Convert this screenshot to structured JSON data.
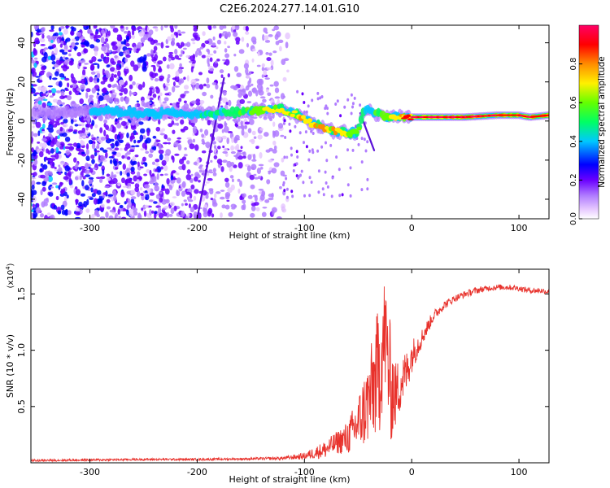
{
  "title": "C2E6.2024.277.14.01.G10",
  "colors": {
    "snr_line": "#e8322c",
    "ridge_core": "#d62020",
    "background_speckle": "#7b2fd6"
  },
  "chart_data": [
    {
      "type": "heatmap",
      "title": "C2E6.2024.277.14.01.G10",
      "xlabel": "Height of straight line (km)",
      "ylabel": "Frequency (Hz)",
      "xlim": [
        -355,
        128
      ],
      "ylim": [
        -50,
        49
      ],
      "xticks": [
        -300,
        -200,
        -100,
        0,
        100
      ],
      "xtick_labels": [
        "-300",
        "-200",
        "-100",
        "0",
        "100"
      ],
      "yticks": [
        -40,
        -20,
        0,
        20,
        40
      ],
      "ytick_labels": [
        "-40",
        "-20",
        "0",
        "20",
        "40"
      ],
      "colorbar": {
        "label": "Normalized spectral amplitude",
        "range": [
          0,
          1
        ],
        "ticks": [
          0.0,
          0.2,
          0.4,
          0.6,
          0.8
        ],
        "tick_labels": [
          "0.0",
          "0.2",
          "0.4",
          "0.6",
          "0.8"
        ],
        "colormap": "rainbow (white-violet-blue-cyan-green-yellow-red-magenta)"
      },
      "ridge": {
        "x": [
          -350,
          -300,
          -250,
          -200,
          -175,
          -150,
          -125,
          -110,
          -100,
          -90,
          -80,
          -70,
          -60,
          -50,
          -45,
          -40,
          -30,
          -20,
          0,
          20,
          50,
          80,
          100,
          110,
          128
        ],
        "frequency": [
          4,
          5,
          4,
          4,
          4,
          5,
          6,
          4,
          1,
          -2,
          -4,
          -5,
          -6,
          -6,
          4,
          6,
          3,
          2,
          2,
          2,
          2,
          3,
          3,
          2,
          3
        ],
        "amplitude": [
          0.25,
          0.3,
          0.35,
          0.4,
          0.45,
          0.55,
          0.65,
          0.6,
          0.75,
          0.8,
          0.7,
          0.75,
          0.6,
          0.6,
          0.5,
          0.55,
          0.5,
          0.6,
          0.95,
          0.95,
          0.95,
          0.9,
          0.9,
          0.92,
          0.8
        ]
      },
      "streaks": [
        {
          "x": [
            -200,
            -175
          ],
          "frequency": [
            -50,
            22
          ]
        },
        {
          "x": [
            -48,
            -35
          ],
          "frequency": [
            4,
            -15
          ]
        }
      ]
    },
    {
      "type": "line",
      "xlabel": "Height of straight line (km)",
      "ylabel": "SNR (10 * v/v)",
      "y_multiplier_label": "(x10",
      "y_multiplier_exponent": "4",
      "y_multiplier_suffix": ")",
      "xlim": [
        -355,
        128
      ],
      "ylim": [
        0,
        1.72
      ],
      "xticks": [
        -300,
        -200,
        -100,
        0,
        100
      ],
      "xtick_labels": [
        "-300",
        "-200",
        "-100",
        "0",
        "100"
      ],
      "yticks": [
        0.5,
        1.0,
        1.5
      ],
      "ytick_labels": [
        "0.5",
        "1.0",
        "1.5"
      ],
      "series": [
        {
          "x": [
            -355,
            -300,
            -250,
            -200,
            -150,
            -120,
            -100,
            -80,
            -70,
            -60,
            -50,
            -40,
            -30,
            -25,
            -20,
            -15,
            -10,
            -5,
            0,
            10,
            20,
            30,
            40,
            50,
            60,
            70,
            80,
            90,
            100,
            110,
            120,
            128
          ],
          "values": [
            0.02,
            0.025,
            0.03,
            0.03,
            0.035,
            0.04,
            0.06,
            0.12,
            0.18,
            0.22,
            0.35,
            0.55,
            0.85,
            1.15,
            0.7,
            0.6,
            0.72,
            0.8,
            0.95,
            1.12,
            1.3,
            1.4,
            1.46,
            1.5,
            1.53,
            1.55,
            1.56,
            1.56,
            1.55,
            1.53,
            1.53,
            1.52
          ],
          "noise": [
            0.01,
            0.01,
            0.01,
            0.01,
            0.01,
            0.015,
            0.03,
            0.08,
            0.1,
            0.15,
            0.25,
            0.4,
            0.6,
            0.55,
            0.55,
            0.3,
            0.25,
            0.2,
            0.15,
            0.08,
            0.05,
            0.04,
            0.03,
            0.03,
            0.03,
            0.025,
            0.025,
            0.025,
            0.025,
            0.025,
            0.025,
            0.025
          ]
        }
      ]
    }
  ]
}
